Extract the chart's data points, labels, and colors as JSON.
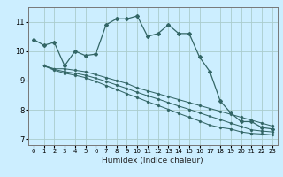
{
  "xlabel": "Humidex (Indice chaleur)",
  "bg_color": "#cceeff",
  "grid_color": "#aacccc",
  "line_color": "#336666",
  "xlim": [
    -0.5,
    23.5
  ],
  "ylim": [
    6.8,
    11.5
  ],
  "xticks": [
    0,
    1,
    2,
    3,
    4,
    5,
    6,
    7,
    8,
    9,
    10,
    11,
    12,
    13,
    14,
    15,
    16,
    17,
    18,
    19,
    20,
    21,
    22,
    23
  ],
  "yticks": [
    7,
    8,
    9,
    10,
    11
  ],
  "series1_x": [
    0,
    1,
    2,
    3,
    4,
    5,
    6,
    7,
    8,
    9,
    10,
    11,
    12,
    13,
    14,
    15,
    16,
    17,
    18,
    19,
    20,
    21,
    22,
    23
  ],
  "series1_y": [
    10.4,
    10.2,
    10.3,
    9.5,
    10.0,
    9.85,
    9.9,
    10.9,
    11.1,
    11.1,
    11.2,
    10.5,
    10.6,
    10.9,
    10.6,
    10.6,
    9.8,
    9.3,
    8.3,
    7.9,
    7.6,
    7.6,
    7.4,
    7.35
  ],
  "series2_x": [
    1,
    2,
    3,
    4,
    5,
    6,
    7,
    8,
    9,
    10,
    11,
    12,
    13,
    14,
    15,
    16,
    17,
    18,
    19,
    20,
    21,
    22,
    23
  ],
  "series2_y": [
    9.5,
    9.4,
    9.4,
    9.35,
    9.3,
    9.2,
    9.1,
    9.0,
    8.9,
    8.75,
    8.65,
    8.55,
    8.45,
    8.35,
    8.25,
    8.15,
    8.05,
    7.95,
    7.85,
    7.75,
    7.65,
    7.55,
    7.45
  ],
  "series3_x": [
    1,
    2,
    3,
    4,
    5,
    6,
    7,
    8,
    9,
    10,
    11,
    12,
    13,
    14,
    15,
    16,
    17,
    18,
    19,
    20,
    21,
    22,
    23
  ],
  "series3_y": [
    9.5,
    9.38,
    9.3,
    9.25,
    9.18,
    9.08,
    8.97,
    8.85,
    8.73,
    8.6,
    8.48,
    8.37,
    8.25,
    8.13,
    8.02,
    7.9,
    7.78,
    7.67,
    7.55,
    7.44,
    7.32,
    7.28,
    7.25
  ],
  "series4_x": [
    1,
    2,
    3,
    4,
    5,
    6,
    7,
    8,
    9,
    10,
    11,
    12,
    13,
    14,
    15,
    16,
    17,
    18,
    19,
    20,
    21,
    22,
    23
  ],
  "series4_y": [
    9.5,
    9.35,
    9.25,
    9.18,
    9.1,
    8.97,
    8.83,
    8.7,
    8.55,
    8.42,
    8.28,
    8.15,
    8.02,
    7.88,
    7.75,
    7.62,
    7.48,
    7.4,
    7.35,
    7.25,
    7.2,
    7.18,
    7.15
  ]
}
